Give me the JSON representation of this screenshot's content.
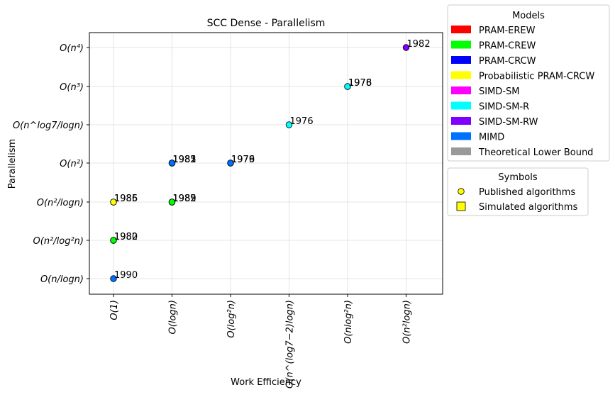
{
  "chart_data": {
    "type": "scatter",
    "title": "SCC Dense - Parallelism",
    "xlabel": "Work Efficiency",
    "ylabel": "Parallelism",
    "x_categories": [
      "O(1)",
      "O(logn)",
      "O(log²n)",
      "O(n^(log7−2)logn)",
      "O(nlog²n)",
      "O(n²logn)"
    ],
    "y_categories": [
      "O(n/logn)",
      "O(n²/log²n)",
      "O(n²/logn)",
      "O(n²)",
      "O(n^log7/logn)",
      "O(n³)",
      "O(n⁴)"
    ],
    "grid": true,
    "legend_models": {
      "title": "Models",
      "placement": "outside-right-top",
      "entries": [
        {
          "label": "PRAM-EREW",
          "color": "#ff0000"
        },
        {
          "label": "PRAM-CREW",
          "color": "#00ff00"
        },
        {
          "label": "PRAM-CRCW",
          "color": "#0000ff"
        },
        {
          "label": "Probabilistic PRAM-CRCW",
          "color": "#ffff00"
        },
        {
          "label": "SIMD-SM",
          "color": "#ff00ff"
        },
        {
          "label": "SIMD-SM-R",
          "color": "#00ffff"
        },
        {
          "label": "SIMD-SM-RW",
          "color": "#8000ff"
        },
        {
          "label": "MIMD",
          "color": "#0070ff"
        },
        {
          "label": "Theoretical Lower Bound",
          "color": "#999999"
        }
      ]
    },
    "legend_symbols": {
      "title": "Symbols",
      "placement": "outside-right",
      "entries": [
        {
          "label": "Published algorithms",
          "shape": "circle"
        },
        {
          "label": "Simulated algorithms",
          "shape": "square"
        }
      ]
    },
    "points": [
      {
        "x": "O(1)",
        "y": "O(n/logn)",
        "model": "MIMD",
        "label": "1990"
      },
      {
        "x": "O(1)",
        "y": "O(n²/log²n)",
        "model": "PRAM-CREW",
        "label": "1980"
      },
      {
        "x": "O(1)",
        "y": "O(n²/log²n)",
        "model": "PRAM-CREW",
        "label": "1982"
      },
      {
        "x": "O(1)",
        "y": "O(n²/logn)",
        "model": "Probabilistic PRAM-CRCW",
        "label": "1985"
      },
      {
        "x": "O(1)",
        "y": "O(n²/logn)",
        "model": "Probabilistic PRAM-CRCW",
        "label": "1986"
      },
      {
        "x": "O(logn)",
        "y": "O(n²/logn)",
        "model": "PRAM-CREW",
        "label": "1982"
      },
      {
        "x": "O(logn)",
        "y": "O(n²/logn)",
        "model": "PRAM-CREW",
        "label": "1985"
      },
      {
        "x": "O(logn)",
        "y": "O(n²/logn)",
        "model": "PRAM-CREW",
        "label": "1989"
      },
      {
        "x": "O(logn)",
        "y": "O(n²)",
        "model": "PRAM-CRCW",
        "label": "1981"
      },
      {
        "x": "O(logn)",
        "y": "O(n²)",
        "model": "PRAM-CRCW",
        "label": "1982"
      },
      {
        "x": "O(logn)",
        "y": "O(n²)",
        "model": "MIMD",
        "label": "1985"
      },
      {
        "x": "O(log²n)",
        "y": "O(n²)",
        "model": "MIMD",
        "label": "1976"
      },
      {
        "x": "O(log²n)",
        "y": "O(n²)",
        "model": "MIMD",
        "label": "1979"
      },
      {
        "x": "O(n^(log7−2)logn)",
        "y": "O(n^log7/logn)",
        "model": "SIMD-SM-R",
        "label": "1976"
      },
      {
        "x": "O(nlog²n)",
        "y": "O(n³)",
        "model": "SIMD-SM-R",
        "label": "1976"
      },
      {
        "x": "O(nlog²n)",
        "y": "O(n³)",
        "model": "SIMD-SM-R",
        "label": "1978"
      },
      {
        "x": "O(n²logn)",
        "y": "O(n⁴)",
        "model": "SIMD-SM-RW",
        "label": "1982"
      }
    ]
  }
}
